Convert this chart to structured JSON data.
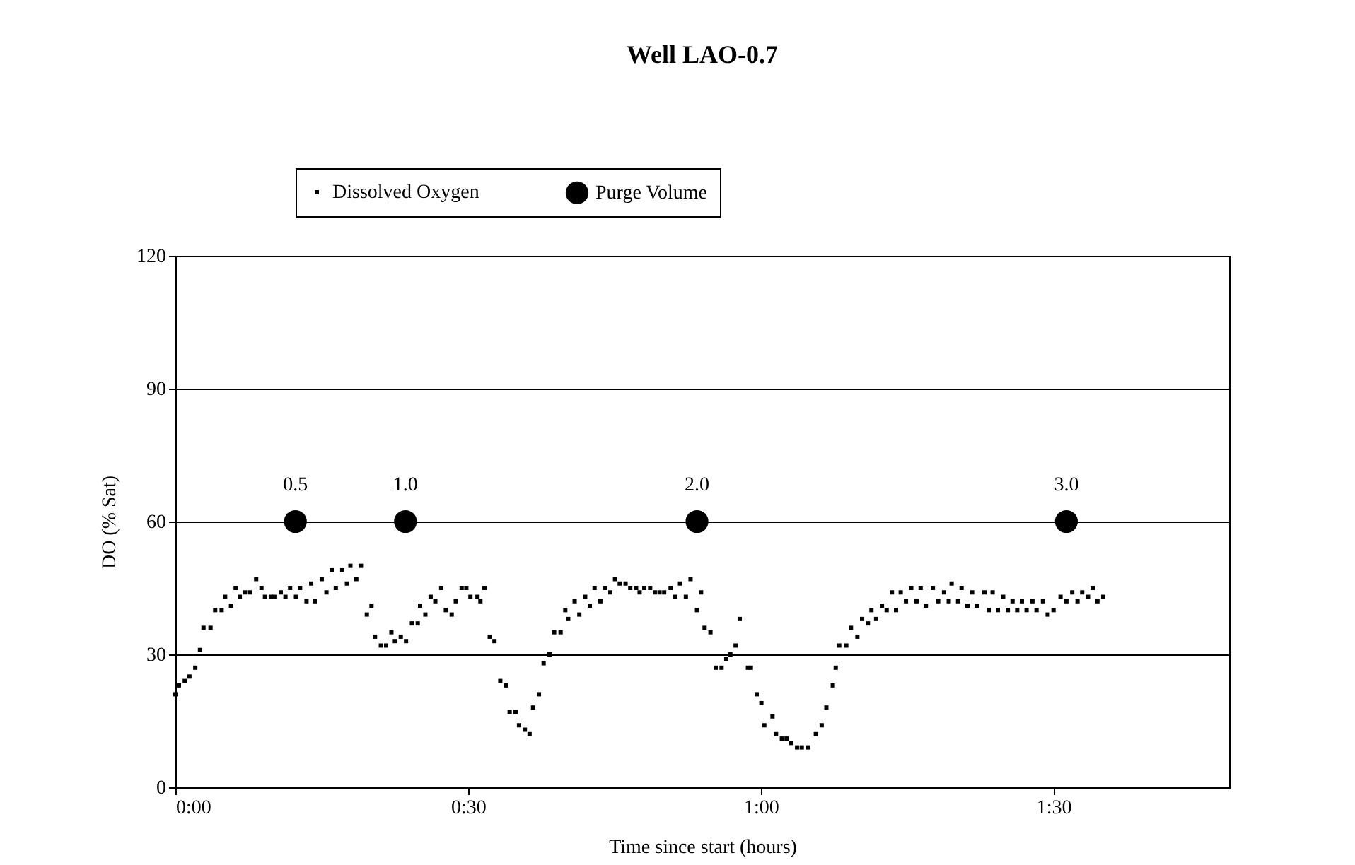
{
  "chart_data": {
    "type": "scatter",
    "title": "Well LAO-0.7",
    "xlabel": "Time since start (hours)",
    "ylabel": "DO (% Sat)",
    "xlim": [
      0,
      1.8
    ],
    "xticks": [
      {
        "value": 0,
        "label": "0:00"
      },
      {
        "value": 0.5,
        "label": "0:30"
      },
      {
        "value": 1,
        "label": "1:00"
      },
      {
        "value": 1.5,
        "label": "1:30"
      }
    ],
    "annotations": [
      {
        "text": "0.5",
        "x": 0.205,
        "y": 60
      },
      {
        "text": "1.0",
        "x": 0.393,
        "y": 60
      },
      {
        "text": "2.0",
        "x": 0.891,
        "y": 60
      },
      {
        "text": "3.0",
        "x": 1.522,
        "y": 60
      }
    ],
    "ylim": [
      0,
      120
    ],
    "yticks": [
      0,
      30,
      60,
      90,
      120
    ],
    "grid": "y",
    "legend": "top",
    "series": [
      {
        "name": "Dissolved Oxygen",
        "color": "#000000",
        "marker": "square",
        "x": [
          0,
          0.006,
          0.016,
          0.024,
          0.034,
          0.042,
          0.048,
          0.06,
          0.068,
          0.079,
          0.085,
          0.095,
          0.103,
          0.11,
          0.119,
          0.127,
          0.138,
          0.147,
          0.153,
          0.163,
          0.169,
          0.18,
          0.188,
          0.196,
          0.206,
          0.213,
          0.224,
          0.232,
          0.238,
          0.25,
          0.258,
          0.267,
          0.274,
          0.285,
          0.293,
          0.299,
          0.309,
          0.317,
          0.327,
          0.335,
          0.341,
          0.351,
          0.36,
          0.369,
          0.375,
          0.385,
          0.394,
          0.404,
          0.414,
          0.418,
          0.427,
          0.436,
          0.444,
          0.454,
          0.462,
          0.472,
          0.479,
          0.489,
          0.497,
          0.504,
          0.516,
          0.521,
          0.528,
          0.537,
          0.545,
          0.555,
          0.565,
          0.571,
          0.581,
          0.587,
          0.597,
          0.605,
          0.611,
          0.621,
          0.629,
          0.639,
          0.647,
          0.658,
          0.666,
          0.671,
          0.682,
          0.69,
          0.7,
          0.708,
          0.716,
          0.726,
          0.734,
          0.743,
          0.751,
          0.759,
          0.769,
          0.777,
          0.787,
          0.793,
          0.801,
          0.811,
          0.819,
          0.827,
          0.835,
          0.846,
          0.854,
          0.862,
          0.872,
          0.88,
          0.891,
          0.898,
          0.904,
          0.914,
          0.923,
          0.933,
          0.941,
          0.948,
          0.957,
          0.964,
          0.978,
          0.983,
          0.993,
          1.001,
          1.006,
          1.02,
          1.026,
          1.036,
          1.044,
          1.052,
          1.062,
          1.07,
          1.081,
          1.094,
          1.104,
          1.112,
          1.123,
          1.128,
          1.134,
          1.146,
          1.154,
          1.165,
          1.173,
          1.183,
          1.189,
          1.197,
          1.207,
          1.215,
          1.224,
          1.231,
          1.239,
          1.248,
          1.257,
          1.266,
          1.273,
          1.282,
          1.294,
          1.303,
          1.313,
          1.321,
          1.326,
          1.337,
          1.343,
          1.353,
          1.361,
          1.369,
          1.382,
          1.39,
          1.396,
          1.405,
          1.414,
          1.422,
          1.43,
          1.438,
          1.446,
          1.454,
          1.464,
          1.471,
          1.482,
          1.49,
          1.5,
          1.512,
          1.522,
          1.532,
          1.541,
          1.549,
          1.559,
          1.567,
          1.575,
          1.585
        ],
        "values": [
          21,
          23,
          24,
          25,
          27,
          31,
          36,
          36,
          40,
          40,
          43,
          41,
          45,
          43,
          44,
          44,
          47,
          45,
          43,
          43,
          43,
          44,
          43,
          45,
          43,
          45,
          42,
          46,
          42,
          47,
          44,
          49,
          45,
          49,
          46,
          50,
          47,
          50,
          39,
          41,
          34,
          32,
          32,
          35,
          33,
          34,
          33,
          37,
          37,
          41,
          39,
          43,
          42,
          45,
          40,
          39,
          42,
          45,
          45,
          43,
          43,
          42,
          45,
          34,
          33,
          24,
          23,
          17,
          17,
          14,
          13,
          12,
          18,
          21,
          28,
          30,
          35,
          35,
          40,
          38,
          42,
          39,
          43,
          41,
          45,
          42,
          45,
          44,
          47,
          46,
          46,
          45,
          45,
          44,
          45,
          45,
          44,
          44,
          44,
          45,
          43,
          46,
          43,
          47,
          40,
          44,
          36,
          35,
          27,
          27,
          29,
          30,
          32,
          38,
          27,
          27,
          21,
          19,
          14,
          16,
          12,
          11,
          11,
          10,
          9,
          9,
          9,
          12,
          14,
          18,
          23,
          27,
          32,
          32,
          36,
          34,
          38,
          37,
          40,
          38,
          41,
          40,
          44,
          40,
          44,
          42,
          45,
          42,
          45,
          41,
          45,
          42,
          44,
          42,
          46,
          42,
          45,
          41,
          44,
          41,
          44,
          40,
          44,
          40,
          43,
          40,
          42,
          40,
          42,
          40,
          42,
          40,
          42,
          39,
          40,
          43,
          42,
          44,
          42,
          44,
          43,
          45,
          42,
          43
        ]
      },
      {
        "name": "Purge Volume",
        "color": "#000000",
        "marker": "circle",
        "x": [
          0.205,
          0.393,
          0.891,
          1.522
        ],
        "values": [
          60,
          60,
          60,
          60
        ]
      }
    ]
  }
}
